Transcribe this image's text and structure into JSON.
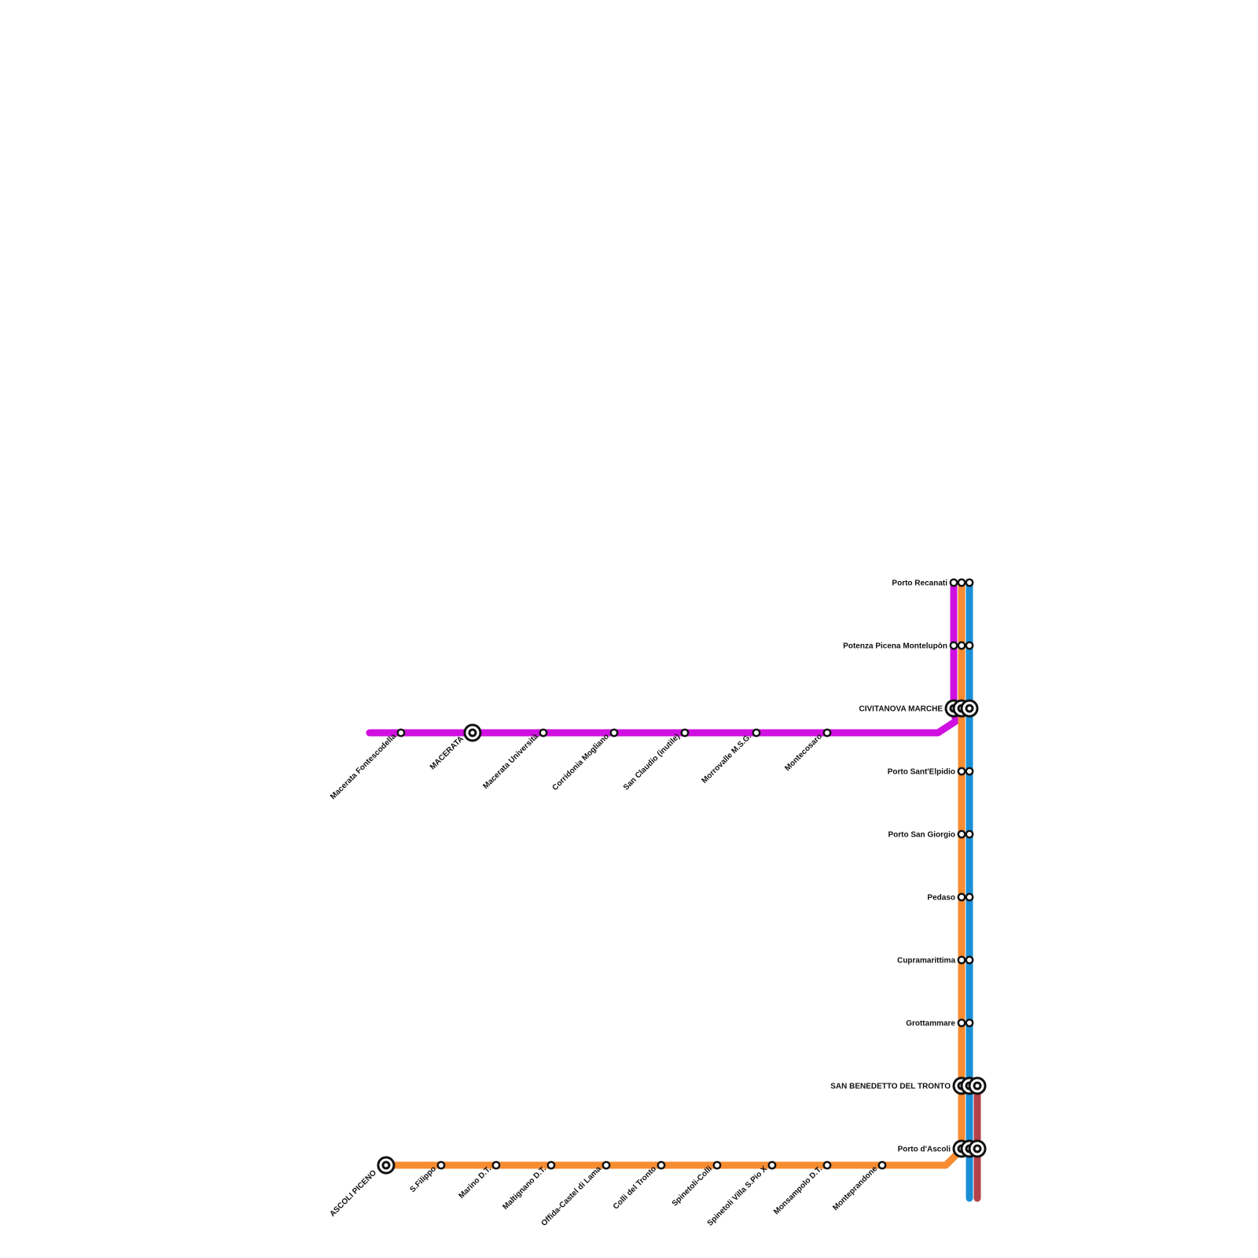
{
  "colors": {
    "background": "#ffffff",
    "line_purple": "#d010e0",
    "line_orange": "#f78c31",
    "line_blue": "#1a8fd6",
    "line_red": "#b5414a",
    "station_fill": "#ffffff",
    "station_stroke": "#111111"
  },
  "purple_stations": [
    {
      "name": "Macerata Fontescodella",
      "major": false
    },
    {
      "name": "MACERATA",
      "major": true
    },
    {
      "name": "Macerata Università",
      "major": false
    },
    {
      "name": "Corridonia Mogliano",
      "major": false
    },
    {
      "name": "San Claudio (inutile)",
      "major": false
    },
    {
      "name": "Morrovalle M.S.G.",
      "major": false
    },
    {
      "name": "Montecosaro",
      "major": false
    }
  ],
  "orange_stations": [
    {
      "name": "ASCOLI PICENO",
      "major": true
    },
    {
      "name": "S.Filippo",
      "major": false
    },
    {
      "name": "Marino D.T.",
      "major": false
    },
    {
      "name": "Maltignano D.T.",
      "major": false
    },
    {
      "name": "Offida-Castel di Lama",
      "major": false
    },
    {
      "name": "Colli del Tronto",
      "major": false
    },
    {
      "name": "Spinetoli-Colli",
      "major": false
    },
    {
      "name": "Spinetoli Villa S.Pio X",
      "major": false
    },
    {
      "name": "Monsampolo D.T.",
      "major": false
    },
    {
      "name": "Monteprandone",
      "major": false
    }
  ],
  "coast_stations": [
    {
      "name": "Porto Recanati",
      "major": false
    },
    {
      "name": "Potenza Picena Montelupòn",
      "major": false
    },
    {
      "name": "CIVITANOVA MARCHE",
      "major": true
    },
    {
      "name": "Porto Sant'Elpidio",
      "major": false
    },
    {
      "name": "Porto San Giorgio",
      "major": false
    },
    {
      "name": "Pedaso",
      "major": false
    },
    {
      "name": "Cupramarittima",
      "major": false
    },
    {
      "name": "Grottammare",
      "major": false
    },
    {
      "name": "SAN BENEDETTO DEL TRONTO",
      "major": true
    },
    {
      "name": "Porto d'Ascoli",
      "major": true
    }
  ]
}
